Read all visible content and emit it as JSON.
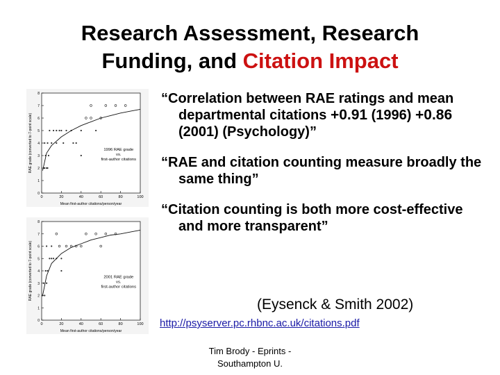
{
  "title": {
    "line1": "Research Assessment, Research",
    "line2_pre": "Funding, and ",
    "line2_highlight": "Citation Impact",
    "highlight_color": "#cc1111"
  },
  "bullets": {
    "b1_text": "“Correlation between RAE ratings and mean departmental citations ",
    "b1_v1": "+0.91",
    "b1_mid": " (1996) ",
    "b1_v2": "+0.86",
    "b1_end": " (2001) (Psychology)”",
    "b2": "“RAE and citation counting measure broadly the same thing”",
    "b3": "“Citation counting is both more cost-effective and more transparent”"
  },
  "citation": "(Eysenck & Smith 2002)",
  "link": "http://psyserver.pc.rhbnc.ac.uk/citations.pdf",
  "footer": {
    "line1": "Tim Brody - Eprints -",
    "line2": "Southampton U."
  },
  "chart_data": [
    {
      "type": "scatter",
      "annotation": "1996 RAE grade vs. first-author citations",
      "annotation_line1": "1996 RAE grade",
      "annotation_line2": "vs.",
      "annotation_line3": "first-author citations",
      "xlabel": "Mean first-author citations/person/year",
      "ylabel": "RAE grade (converted to 7-point scale)",
      "xlim": [
        0,
        100
      ],
      "ylim": [
        0,
        8
      ],
      "x_ticks": [
        "0",
        "20",
        "40",
        "60",
        "80",
        "100"
      ],
      "y_ticks": [
        "0",
        "1",
        "2",
        "3",
        "4",
        "5",
        "6",
        "7",
        "8"
      ],
      "points": [
        [
          2,
          2
        ],
        [
          3,
          2
        ],
        [
          5,
          2
        ],
        [
          6,
          2
        ],
        [
          4,
          3
        ],
        [
          7,
          3
        ],
        [
          3,
          4
        ],
        [
          6,
          4
        ],
        [
          10,
          4
        ],
        [
          15,
          4
        ],
        [
          22,
          4
        ],
        [
          32,
          4
        ],
        [
          8,
          5
        ],
        [
          12,
          5
        ],
        [
          15,
          5
        ],
        [
          18,
          5
        ],
        [
          20,
          5
        ],
        [
          25,
          5
        ],
        [
          30,
          5
        ],
        [
          40,
          5
        ],
        [
          55,
          5
        ],
        [
          35,
          4
        ],
        [
          45,
          6
        ],
        [
          50,
          6
        ],
        [
          60,
          6
        ],
        [
          75,
          7
        ],
        [
          50,
          7
        ],
        [
          65,
          7
        ],
        [
          85,
          7
        ],
        [
          40,
          3
        ]
      ],
      "fit_curve": [
        [
          1,
          1.8
        ],
        [
          5,
          3.2
        ],
        [
          10,
          3.8
        ],
        [
          20,
          4.5
        ],
        [
          30,
          5.0
        ],
        [
          40,
          5.4
        ],
        [
          50,
          5.7
        ],
        [
          60,
          6.0
        ],
        [
          70,
          6.2
        ],
        [
          80,
          6.4
        ],
        [
          90,
          6.55
        ],
        [
          100,
          6.7
        ]
      ]
    },
    {
      "type": "scatter",
      "annotation": "2001 RAE grade vs. first-author citations",
      "annotation_line1": "2001 RAE grade",
      "annotation_line2": "vs.",
      "annotation_line3": "first-author citations",
      "xlabel": "Mean first-author citations/person/year",
      "ylabel": "RAE grade (converted to 7-point scale)",
      "xlim": [
        0,
        100
      ],
      "ylim": [
        0,
        8
      ],
      "x_ticks": [
        "0",
        "20",
        "40",
        "60",
        "80",
        "100"
      ],
      "y_ticks": [
        "0",
        "1",
        "2",
        "3",
        "4",
        "5",
        "6",
        "7",
        "8"
      ],
      "points": [
        [
          1,
          2
        ],
        [
          2,
          3
        ],
        [
          3,
          2
        ],
        [
          4,
          4
        ],
        [
          5,
          3
        ],
        [
          6,
          4
        ],
        [
          8,
          5
        ],
        [
          10,
          5
        ],
        [
          12,
          5
        ],
        [
          15,
          5
        ],
        [
          18,
          6
        ],
        [
          20,
          5
        ],
        [
          25,
          6
        ],
        [
          30,
          6
        ],
        [
          35,
          6
        ],
        [
          40,
          6
        ],
        [
          45,
          7
        ],
        [
          55,
          7
        ],
        [
          65,
          7
        ],
        [
          75,
          7
        ],
        [
          15,
          7
        ],
        [
          10,
          6
        ],
        [
          5,
          6
        ],
        [
          20,
          4
        ],
        [
          60,
          6
        ]
      ],
      "fit_curve": [
        [
          1,
          2.0
        ],
        [
          5,
          3.6
        ],
        [
          10,
          4.6
        ],
        [
          20,
          5.4
        ],
        [
          30,
          5.9
        ],
        [
          40,
          6.2
        ],
        [
          50,
          6.5
        ],
        [
          60,
          6.7
        ],
        [
          70,
          6.9
        ],
        [
          80,
          7.0
        ],
        [
          90,
          7.15
        ],
        [
          100,
          7.3
        ]
      ]
    }
  ]
}
